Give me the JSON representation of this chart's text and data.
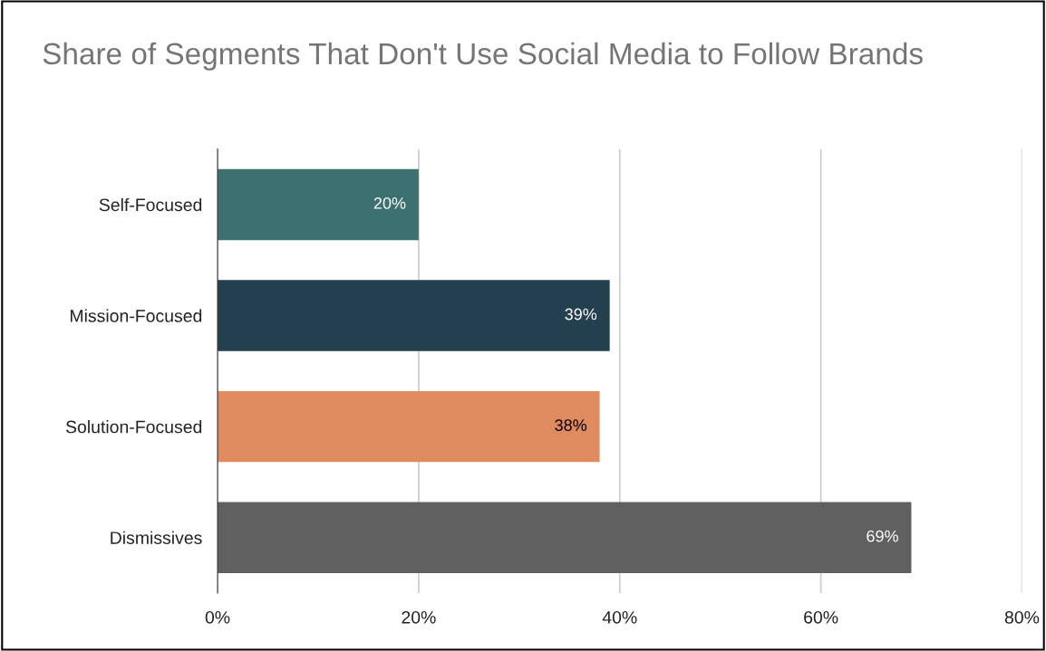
{
  "chart_data": {
    "type": "bar",
    "orientation": "horizontal",
    "title": "Share of Segments That Don't Use Social Media to Follow Brands",
    "categories": [
      "Self-Focused",
      "Mission-Focused",
      "Solution-Focused",
      "Dismissives"
    ],
    "values": [
      20,
      39,
      38,
      69
    ],
    "colors": [
      "#3d7070",
      "#243f4d",
      "#e08a5f",
      "#606060"
    ],
    "value_labels": [
      "20%",
      "39%",
      "38%",
      "69%"
    ],
    "xlim": [
      0,
      80
    ],
    "xticks": [
      {
        "value": 0,
        "label": "0%"
      },
      {
        "value": 20,
        "label": "20%"
      },
      {
        "value": 40,
        "label": "40%"
      },
      {
        "value": 60,
        "label": "60%"
      },
      {
        "value": 80,
        "label": "80%"
      }
    ],
    "grid": "x",
    "legend": false
  }
}
